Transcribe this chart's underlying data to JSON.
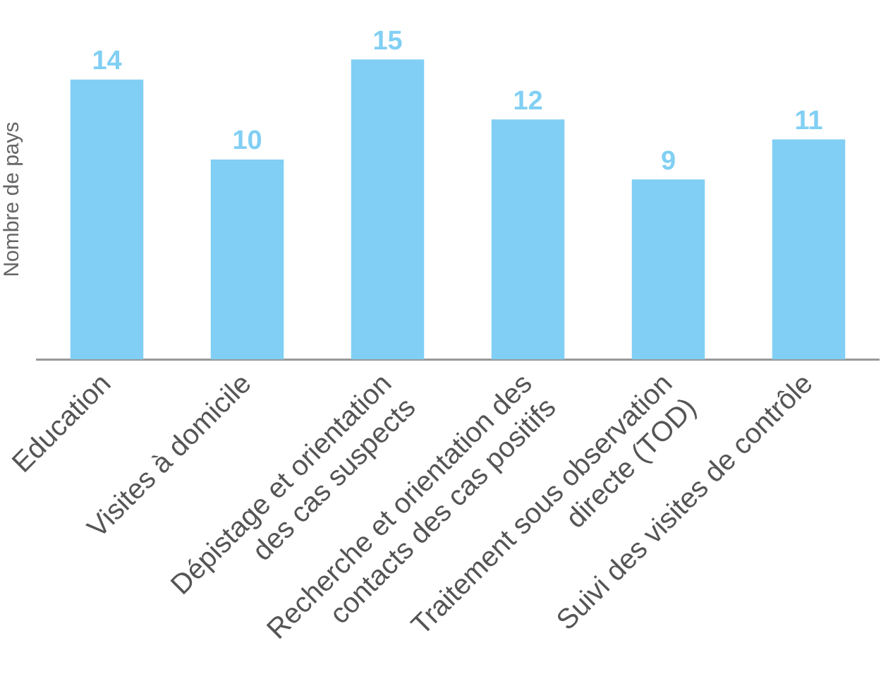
{
  "chart_data": {
    "type": "bar",
    "ylabel": "Nombre de pays",
    "categories": [
      "Education",
      "Visites à domicile",
      "Dépistage et orientation\ndes cas suspects",
      "Recherche et orientation des\ncontacts des cas positifs",
      "Traitement sous observation\ndirecte (TOD)",
      "Suivi des visites de contrôle"
    ],
    "values": [
      14,
      10,
      15,
      12,
      9,
      11
    ],
    "color": "#81cff4",
    "data_labels": true,
    "grid": false,
    "legend": false
  }
}
